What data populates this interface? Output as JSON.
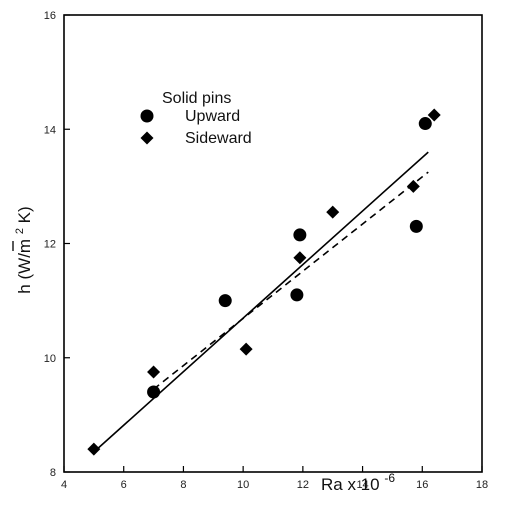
{
  "chart_data": {
    "type": "scatter",
    "xlabel": "Ra x 10",
    "xlabel_sup": "-6",
    "ylabel": "h (W/m",
    "ylabel_sup": "2",
    "ylabel_tail": " K)",
    "xlim": [
      4,
      18
    ],
    "ylim": [
      8,
      16
    ],
    "x_ticks": [
      4,
      6,
      8,
      10,
      12,
      14,
      16,
      18
    ],
    "y_ticks": [
      8,
      10,
      12,
      14,
      16
    ],
    "grid": false,
    "legend_title": "Solid pins",
    "legend_position": "top-left",
    "series": [
      {
        "name": "Upward",
        "marker": "circle",
        "color": "#000000",
        "points": [
          {
            "x": 7.0,
            "y": 9.4
          },
          {
            "x": 9.4,
            "y": 11.0
          },
          {
            "x": 11.8,
            "y": 11.1
          },
          {
            "x": 11.9,
            "y": 12.15
          },
          {
            "x": 15.8,
            "y": 12.3
          },
          {
            "x": 16.1,
            "y": 14.1
          }
        ]
      },
      {
        "name": "Sideward",
        "marker": "diamond",
        "color": "#000000",
        "points": [
          {
            "x": 5.0,
            "y": 8.4
          },
          {
            "x": 7.0,
            "y": 9.75
          },
          {
            "x": 10.1,
            "y": 10.15
          },
          {
            "x": 11.9,
            "y": 11.75
          },
          {
            "x": 13.0,
            "y": 12.55
          },
          {
            "x": 15.7,
            "y": 13.0
          },
          {
            "x": 16.4,
            "y": 14.25
          }
        ]
      }
    ],
    "fit_lines": [
      {
        "style": "solid",
        "color": "#000000",
        "from": {
          "x": 5.0,
          "y": 8.35
        },
        "to": {
          "x": 16.2,
          "y": 13.6
        }
      },
      {
        "style": "dashed",
        "color": "#000000",
        "from": {
          "x": 7.0,
          "y": 9.45
        },
        "to": {
          "x": 16.2,
          "y": 13.25
        }
      }
    ]
  }
}
